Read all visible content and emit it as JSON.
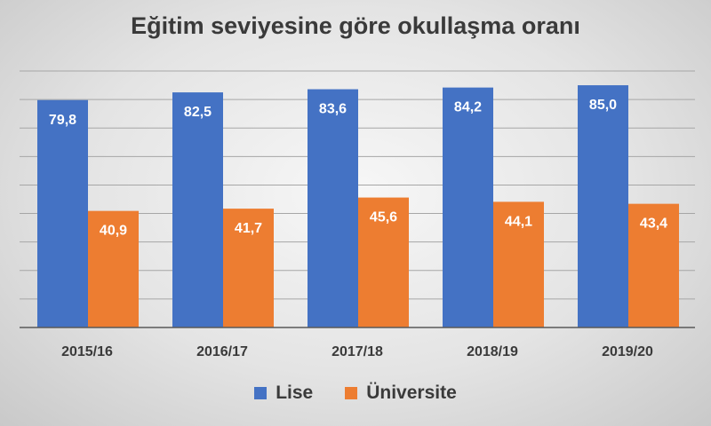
{
  "chart_data": {
    "type": "bar",
    "title": "Eğitim seviyesine göre okullaşma oranı",
    "categories": [
      "2015/16",
      "2016/17",
      "2017/18",
      "2018/19",
      "2019/20"
    ],
    "series": [
      {
        "name": "Lise",
        "color": "#4472C4",
        "values": [
          79.8,
          82.5,
          83.6,
          84.2,
          85.0
        ],
        "labels": [
          "79,8",
          "82,5",
          "83,6",
          "84,2",
          "85,0"
        ]
      },
      {
        "name": "Üniversite",
        "color": "#ED7D31",
        "values": [
          40.9,
          41.7,
          45.6,
          44.1,
          43.4
        ],
        "labels": [
          "40,9",
          "41,7",
          "45,6",
          "44,1",
          "43,4"
        ]
      }
    ],
    "ylim": [
      0,
      90
    ],
    "y_axis_labels_shown": false,
    "grid": true,
    "legend_position": "bottom",
    "data_labels": "inside-end",
    "colors": {
      "label_on_bar": "#ffffff",
      "text": "#3a3a3a",
      "grid": "#a6a6a6"
    }
  }
}
